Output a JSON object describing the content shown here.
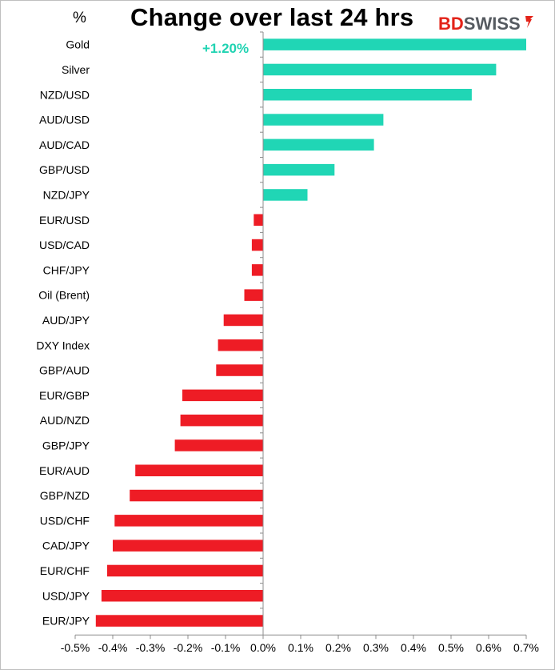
{
  "chart_data": {
    "type": "bar",
    "orientation": "horizontal",
    "title": "Change over last 24 hrs",
    "unit_label": "%",
    "annotation": "+1.20%",
    "categories": [
      "Gold",
      "Silver",
      "NZD/USD",
      "AUD/USD",
      "AUD/CAD",
      "GBP/USD",
      "NZD/JPY",
      "EUR/USD",
      "USD/CAD",
      "CHF/JPY",
      "Oil (Brent)",
      "AUD/JPY",
      "DXY Index",
      "GBP/AUD",
      "EUR/GBP",
      "AUD/NZD",
      "GBP/JPY",
      "EUR/AUD",
      "GBP/NZD",
      "USD/CHF",
      "CAD/JPY",
      "EUR/CHF",
      "USD/JPY",
      "EUR/JPY"
    ],
    "values": [
      0.7,
      0.62,
      0.555,
      0.32,
      0.295,
      0.19,
      0.118,
      -0.025,
      -0.03,
      -0.03,
      -0.05,
      -0.105,
      -0.12,
      -0.125,
      -0.215,
      -0.22,
      -0.235,
      -0.34,
      -0.355,
      -0.395,
      -0.4,
      -0.415,
      -0.43,
      -0.445
    ],
    "xlim": [
      -0.5,
      0.7
    ],
    "xticks": [
      "-0.5%",
      "-0.4%",
      "-0.3%",
      "-0.2%",
      "-0.1%",
      "0.0%",
      "0.1%",
      "0.2%",
      "0.3%",
      "0.4%",
      "0.5%",
      "0.6%",
      "0.7%"
    ],
    "grid": false,
    "colors": {
      "positive": "#20d6b5",
      "negative": "#ee1c25"
    }
  },
  "logo": {
    "part1": "BD",
    "part2": "SWISS"
  }
}
